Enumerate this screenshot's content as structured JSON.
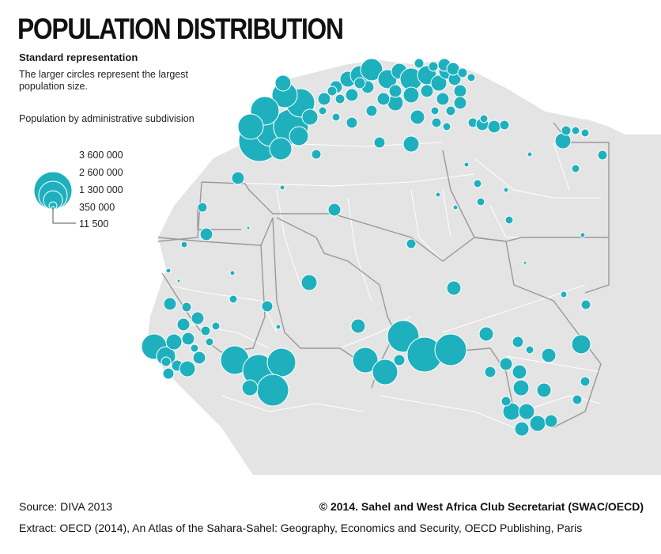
{
  "title": "POPULATION DISTRIBUTION",
  "subtitle": "Standard representation",
  "description": "The larger circles represent the largest population size.",
  "legend": {
    "title": "Population by administrative subdivision",
    "labels": [
      "3 600 000",
      "2 600 000",
      "1 300 000",
      "350 000",
      "11 500"
    ],
    "values": [
      3600000,
      2600000,
      1300000,
      350000,
      11500
    ]
  },
  "source": "Source: DIVA 2013",
  "copyright": "© 2014. Sahel and West Africa Club Secretariat (SWAC/OECD)",
  "extract": "Extract: OECD (2014), An Atlas of the Sahara-Sahel: Geography, Economics  and Security, OECD Publishing, Paris",
  "colors": {
    "circle": "#1fb0be",
    "circle_stroke": "#ffffff",
    "land": "#e4e4e4",
    "border_internal": "#ffffff",
    "border_country": "#999999"
  }
}
